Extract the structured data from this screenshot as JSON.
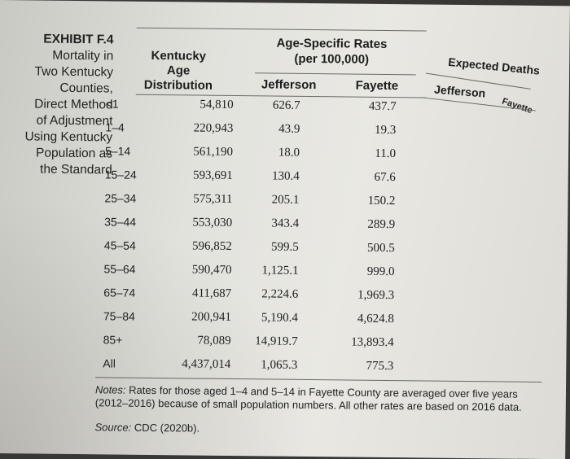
{
  "exhibit": {
    "label": "EXHIBIT F.4",
    "caption_lines": [
      "Mortality in",
      "Two Kentucky",
      "Counties,",
      "Direct Method",
      "of Adjustment",
      "Using Kentucky",
      "Population as",
      "the Standard"
    ]
  },
  "headers": {
    "kentucky_age_distribution": [
      "Kentucky",
      "Age",
      "Distribution"
    ],
    "age_specific_rates": [
      "Age-Specific Rates",
      "(per 100,000)"
    ],
    "jefferson": "Jefferson",
    "fayette": "Fayette",
    "expected_deaths": "Expected Deaths",
    "expected_jefferson": "Jefferson",
    "expected_fayette": "Fayette"
  },
  "rows": [
    {
      "age": "<1",
      "kentucky": "54,810",
      "jefferson": "626.7",
      "fayette": "437.7"
    },
    {
      "age": "1–4",
      "kentucky": "220,943",
      "jefferson": "43.9",
      "fayette": "19.3"
    },
    {
      "age": "5–14",
      "kentucky": "561,190",
      "jefferson": "18.0",
      "fayette": "11.0"
    },
    {
      "age": "15–24",
      "kentucky": "593,691",
      "jefferson": "130.4",
      "fayette": "67.6"
    },
    {
      "age": "25–34",
      "kentucky": "575,311",
      "jefferson": "205.1",
      "fayette": "150.2"
    },
    {
      "age": "35–44",
      "kentucky": "553,030",
      "jefferson": "343.4",
      "fayette": "289.9"
    },
    {
      "age": "45–54",
      "kentucky": "596,852",
      "jefferson": "599.5",
      "fayette": "500.5"
    },
    {
      "age": "55–64",
      "kentucky": "590,470",
      "jefferson": "1,125.1",
      "fayette": "999.0"
    },
    {
      "age": "65–74",
      "kentucky": "411,687",
      "jefferson": "2,224.6",
      "fayette": "1,969.3"
    },
    {
      "age": "75–84",
      "kentucky": "200,941",
      "jefferson": "5,190.4",
      "fayette": "4,624.8"
    },
    {
      "age": "85+",
      "kentucky": "78,089",
      "jefferson": "14,919.7",
      "fayette": "13,893.4"
    },
    {
      "age": "All",
      "kentucky": "4,437,014",
      "jefferson": "1,065.3",
      "fayette": "775.3"
    }
  ],
  "notes": {
    "label": "Notes:",
    "text": "Rates for those aged 1–4 and 5–14 in Fayette County are averaged over five years (2012–2016) because of small population numbers. All other rates are based on 2016 data."
  },
  "source": {
    "label": "Source:",
    "text": "CDC (2020b)."
  }
}
